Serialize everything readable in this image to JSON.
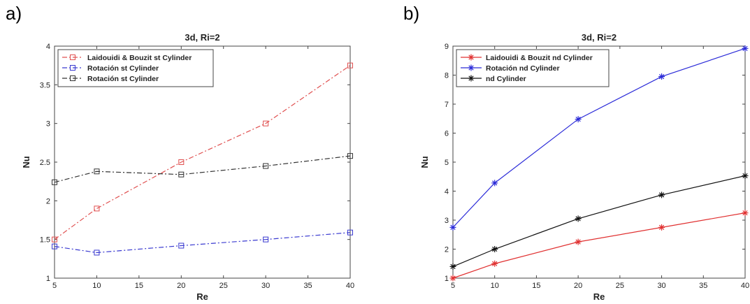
{
  "panels": {
    "a_label": "a)",
    "b_label": "b)"
  },
  "chart_data": [
    {
      "type": "line",
      "panel": "a)",
      "title": "3d, Ri=2",
      "xlabel": "Re",
      "ylabel": "Nu",
      "xlim": [
        5,
        40
      ],
      "ylim": [
        1,
        4
      ],
      "xticks": [
        "5",
        "10",
        "15",
        "20",
        "25",
        "30",
        "35",
        "40"
      ],
      "yticks": [
        "1",
        "1.5",
        "2",
        "2.5",
        "3",
        "3.5",
        "4"
      ],
      "grid": false,
      "legend_position": "top-left",
      "x": [
        5,
        10,
        20,
        30,
        40
      ],
      "series": [
        {
          "name": "Laidouidi & Bouzit st Cylinder",
          "values": [
            1.5,
            1.9,
            2.5,
            3.0,
            3.75
          ],
          "color": "#e05050",
          "marker": "square",
          "dash": "dash-dot"
        },
        {
          "name": "Rotación st Cylinder",
          "values": [
            1.41,
            1.33,
            1.42,
            1.5,
            1.59
          ],
          "color": "#3a3ad0",
          "marker": "square",
          "dash": "dash-dot"
        },
        {
          "name": "Rotación st Cylinder",
          "values": [
            2.24,
            2.38,
            2.34,
            2.45,
            2.58
          ],
          "color": "#333333",
          "marker": "square",
          "dash": "dash-dot"
        }
      ]
    },
    {
      "type": "line",
      "panel": "b)",
      "title": "3d, Ri=2",
      "xlabel": "Re",
      "ylabel": "Nu",
      "xlim": [
        5,
        40
      ],
      "ylim": [
        1,
        9
      ],
      "xticks": [
        "5",
        "10",
        "15",
        "20",
        "25",
        "30",
        "35",
        "40"
      ],
      "yticks": [
        "1",
        "2",
        "3",
        "4",
        "5",
        "6",
        "7",
        "8",
        "9"
      ],
      "grid": false,
      "legend_position": "top-left",
      "x": [
        5,
        10,
        20,
        30,
        40
      ],
      "series": [
        {
          "name": "Laidouidi & Bouzit nd Cylinder",
          "values": [
            1.0,
            1.5,
            2.25,
            2.75,
            3.25
          ],
          "color": "#e03030",
          "marker": "asterisk",
          "dash": "solid"
        },
        {
          "name": "Rotación nd Cylinder",
          "values": [
            2.75,
            4.28,
            6.48,
            7.95,
            8.92
          ],
          "color": "#2a2ad8",
          "marker": "asterisk",
          "dash": "solid"
        },
        {
          "name": "nd Cylinder",
          "values": [
            1.4,
            2.0,
            3.05,
            3.87,
            4.53
          ],
          "color": "#111111",
          "marker": "asterisk",
          "dash": "solid"
        }
      ]
    }
  ]
}
